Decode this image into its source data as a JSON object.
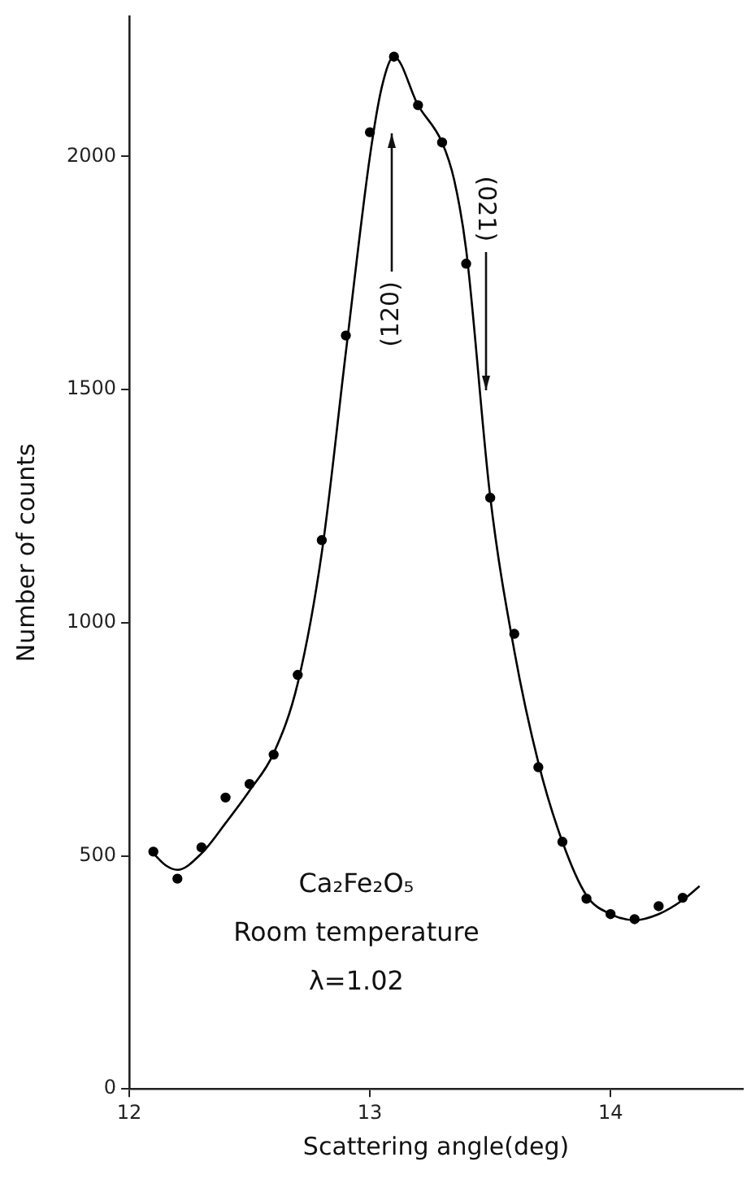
{
  "chart_data": {
    "type": "scatter",
    "xlabel": "Scattering angle(deg)",
    "ylabel": "Number of counts",
    "xlim": [
      12,
      14.55
    ],
    "xticks": [
      12,
      13,
      14
    ],
    "ylim": [
      0,
      2300
    ],
    "yticks": [
      0,
      500,
      1000,
      1500,
      2000
    ],
    "grid": false,
    "legend": false,
    "series": [
      {
        "type": "scatter",
        "color": "#000000",
        "marker": "circle",
        "x": [
          12.1,
          12.2,
          12.3,
          12.4,
          12.5,
          12.6,
          12.7,
          12.8,
          12.9,
          13.0,
          13.1,
          13.2,
          13.3,
          13.4,
          13.5,
          13.6,
          13.7,
          13.8,
          13.9,
          14.0,
          14.1,
          14.2,
          14.3
        ],
        "values": [
          509,
          451,
          518,
          625,
          654,
          717,
          888,
          1177,
          1616,
          2052,
          2214,
          2110,
          2030,
          1770,
          1268,
          976,
          690,
          530,
          408,
          375,
          364,
          392,
          410
        ]
      },
      {
        "type": "line",
        "color": "#000000",
        "marker": "none",
        "line_style": "solid",
        "x": [
          12.1,
          12.15,
          12.2,
          12.3,
          12.4,
          12.5,
          12.6,
          12.7,
          12.8,
          12.9,
          13.0,
          13.05,
          13.1,
          13.2,
          13.3,
          13.35,
          13.4,
          13.5,
          13.6,
          13.7,
          13.8,
          13.9,
          14.0,
          14.1,
          14.2,
          14.3,
          14.37
        ],
        "values": [
          505,
          480,
          470,
          505,
          570,
          640,
          720,
          870,
          1150,
          1580,
          2000,
          2150,
          2214,
          2110,
          2030,
          1950,
          1800,
          1270,
          940,
          700,
          530,
          415,
          375,
          362,
          375,
          405,
          435
        ]
      }
    ],
    "annotations": [
      "(120)",
      {
        "text": "(021)",
        "x": 13.48,
        "y": 1500
      },
      "Ca₂Fe₂O₅",
      "Room temperature",
      "λ=1.02"
    ]
  }
}
